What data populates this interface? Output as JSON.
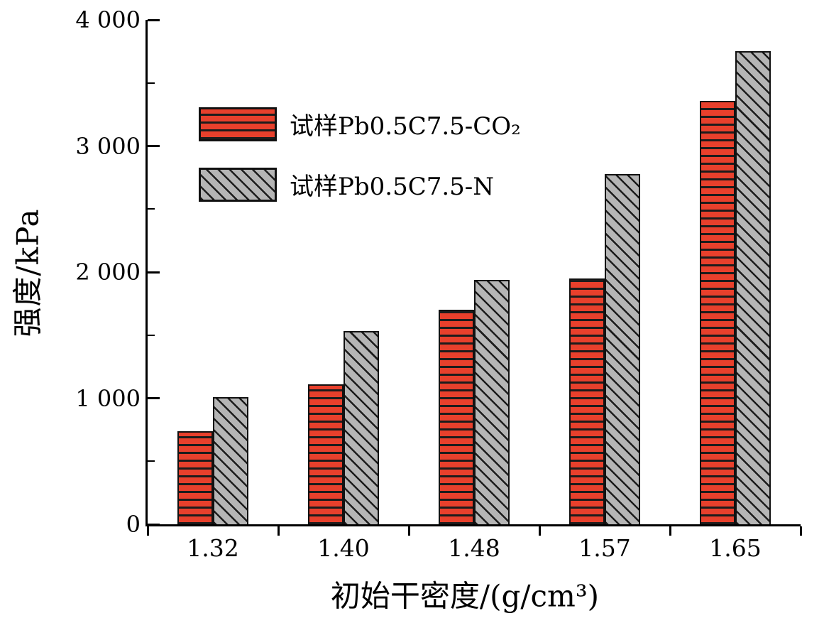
{
  "chart_data": {
    "type": "bar",
    "title": "",
    "xlabel": "初始干密度/(g/cm³)",
    "ylabel": "强度/kPa",
    "categories": [
      "1.32",
      "1.40",
      "1.48",
      "1.57",
      "1.65"
    ],
    "series": [
      {
        "name": "试样Pb0.5C7.5-CO₂",
        "values": [
          740,
          1110,
          1700,
          1950,
          3360
        ],
        "fill": "#e8402c",
        "hatch": "horizontal",
        "hatch_color": "#1c1c1c"
      },
      {
        "name": "试样Pb0.5C7.5-N",
        "values": [
          1010,
          1530,
          1940,
          2780,
          3750
        ],
        "fill": "#b5b5b5",
        "hatch": "diagonal-down",
        "hatch_color": "#1c1c1c"
      }
    ],
    "ylim": [
      0,
      4000
    ],
    "yticks": [
      {
        "value": 0,
        "label": "0"
      },
      {
        "value": 1000,
        "label": "1 000"
      },
      {
        "value": 2000,
        "label": "2 000"
      },
      {
        "value": 3000,
        "label": "3 000"
      },
      {
        "value": 4000,
        "label": "4 000"
      }
    ],
    "y_minor_step": 500,
    "grid": false,
    "legend_position": "upper-left-inside",
    "axis_color": "#000000",
    "background": "#ffffff"
  }
}
